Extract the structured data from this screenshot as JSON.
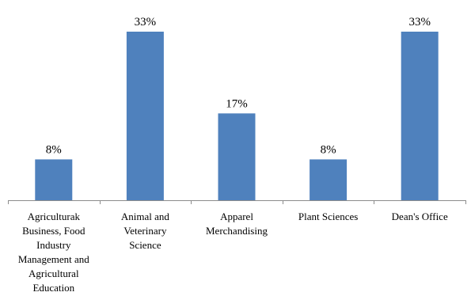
{
  "chart_data": {
    "type": "bar",
    "categories": [
      "Agriculturak Business, Food Industry Management and Agricultural Education",
      "Animal and Veterinary Science",
      "Apparel Merchandising",
      "Plant Sciences",
      "Dean's Office"
    ],
    "category_label_lines": [
      [
        "Agriculturak",
        "Business, Food",
        "Industry",
        "Management and",
        "Agricultural",
        "Education"
      ],
      [
        "Animal and",
        "Veterinary",
        "Science"
      ],
      [
        "Apparel",
        "Merchandising"
      ],
      [
        "Plant Sciences"
      ],
      [
        "Dean's Office"
      ]
    ],
    "values": [
      8,
      33,
      17,
      8,
      33
    ],
    "data_labels": [
      "8%",
      "33%",
      "17%",
      "8%",
      "33%"
    ],
    "unit": "%",
    "ylim": [
      0,
      33
    ],
    "grid": false,
    "legend": "none",
    "title": "",
    "xlabel": "",
    "ylabel": "",
    "colors": {
      "bar": "#4F81BD",
      "axis": "#8c8c8c",
      "text": "#000000"
    }
  }
}
